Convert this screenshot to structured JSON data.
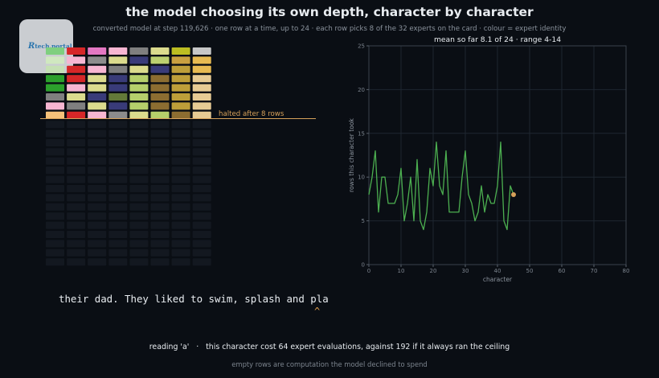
{
  "header": {
    "title": "the model choosing its own depth, character by character",
    "subtitle": "converted model at step 119,626  ·  one row at a time, up to 24  ·  each row picks 8 of the 32 experts on the card  ·  colour = expert identity"
  },
  "logo": {
    "mark": "R",
    "text": "tech.portal"
  },
  "expert_grid": {
    "rows_total": 24,
    "columns": 8,
    "rows_used": 8,
    "halt_label": "halted after 8 rows",
    "empty_color": "#131820",
    "used_rows": [
      [
        "#7fcf7f",
        "#d62728",
        "#e377c2",
        "#f7b6d2",
        "#7f7f7f",
        "#dbdb8d",
        "#bcbd22",
        "#c7c7c7"
      ],
      [
        "#d0e8c0",
        "#f7b6d2",
        "#8c8c8c",
        "#dbdb8d",
        "#393b79",
        "#bcd070",
        "#c9a040",
        "#e7ba52"
      ],
      [
        "#c5e0b4",
        "#d62728",
        "#f7b6d2",
        "#7f7f7f",
        "#dbdb8d",
        "#393b79",
        "#bd9e39",
        "#e7ba52"
      ],
      [
        "#2ca02c",
        "#d62728",
        "#dbdb8d",
        "#393b79",
        "#b5cf6b",
        "#8c6d31",
        "#bd9e39",
        "#e7cb94"
      ],
      [
        "#2ca02c",
        "#f7b6d2",
        "#dbdb8d",
        "#393b79",
        "#b5cf6b",
        "#8c6d31",
        "#bd9e39",
        "#e7cb94"
      ],
      [
        "#7f7f7f",
        "#dbdb8d",
        "#393b79",
        "#637939",
        "#b5cf6b",
        "#8c6d31",
        "#bd9e39",
        "#e7cb94"
      ],
      [
        "#f7b6d2",
        "#7f7f7f",
        "#dbdb8d",
        "#393b79",
        "#b5cf6b",
        "#8c6d31",
        "#bd9e39",
        "#e7cb94"
      ],
      [
        "#f5c27a",
        "#d62728",
        "#f7b6d2",
        "#8c8c8c",
        "#dbdb8d",
        "#b5cf6b",
        "#8c6d31",
        "#e7cb94"
      ]
    ]
  },
  "chart_data": {
    "type": "line",
    "header_text": "mean so far 8.1 of 24  ·  range 4-14",
    "xlabel": "character",
    "ylabel": "rows this character took",
    "xlim": [
      0,
      80
    ],
    "ylim": [
      0,
      25
    ],
    "xticks": [
      0,
      10,
      20,
      30,
      40,
      50,
      60,
      70,
      80
    ],
    "yticks": [
      0,
      5,
      10,
      15,
      20,
      25
    ],
    "grid": true,
    "line_color": "#4caf50",
    "marker_color": "#d6a15a",
    "x": [
      0,
      1,
      2,
      3,
      4,
      5,
      6,
      7,
      8,
      9,
      10,
      11,
      12,
      13,
      14,
      15,
      16,
      17,
      18,
      19,
      20,
      21,
      22,
      23,
      24,
      25,
      26,
      27,
      28,
      29,
      30,
      31,
      32,
      33,
      34,
      35,
      36,
      37,
      38,
      39,
      40,
      41,
      42,
      43,
      44,
      45
    ],
    "y": [
      8,
      10,
      13,
      6,
      10,
      10,
      7,
      7,
      7,
      8,
      11,
      5,
      7,
      10,
      5,
      12,
      5,
      4,
      6,
      11,
      9,
      14,
      9,
      8,
      13,
      6,
      6,
      6,
      6,
      10,
      13,
      8,
      7,
      5,
      6,
      9,
      6,
      8,
      7,
      7,
      9,
      14,
      5,
      4,
      9,
      8
    ],
    "current": {
      "x": 45,
      "y": 8
    }
  },
  "text_stream": {
    "sentence": "their dad. They liked to swim, splash and pla",
    "caret": "^"
  },
  "status": {
    "reading": "reading 'a'   ·   this character cost 64 expert evaluations, against 192 if it always ran the ceiling",
    "footnote": "empty rows are computation the model declined to spend"
  }
}
